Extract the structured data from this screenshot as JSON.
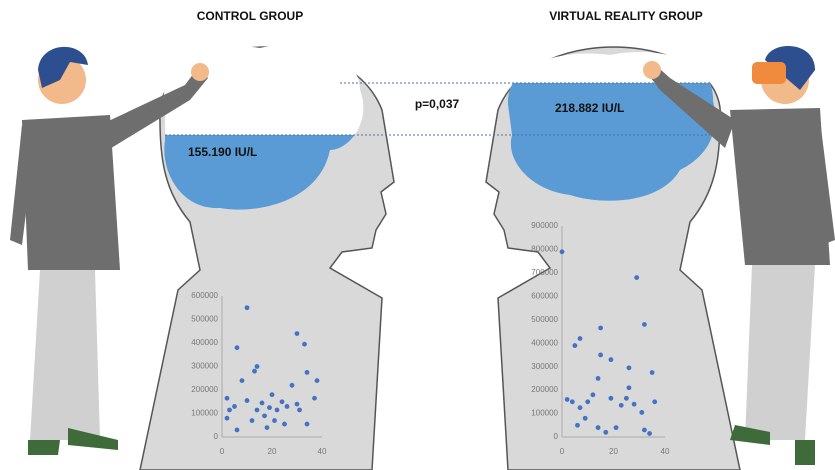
{
  "p_value": "p=0,037",
  "panels": [
    {
      "title": "CONTROL GROUP",
      "value_label": "155.190  IU/L",
      "scatter": {
        "type": "scatter",
        "color": "#4472c4",
        "x": [
          10,
          6,
          8,
          13,
          14,
          2,
          3,
          2,
          5,
          10,
          14,
          16,
          17,
          19,
          20,
          22,
          24,
          26,
          28,
          30,
          33,
          34,
          38,
          37,
          31,
          34,
          6,
          18,
          21,
          25,
          12,
          30
        ],
        "y": [
          550000,
          380000,
          240000,
          280000,
          300000,
          165000,
          115000,
          80000,
          130000,
          155000,
          115000,
          145000,
          90000,
          125000,
          180000,
          115000,
          150000,
          130000,
          220000,
          440000,
          395000,
          275000,
          240000,
          165000,
          115000,
          55000,
          30000,
          40000,
          70000,
          55000,
          70000,
          140000
        ],
        "xlim": [
          0,
          40
        ],
        "ylim": [
          0,
          600000
        ],
        "xticks": [
          0,
          20,
          40
        ],
        "yticks": [
          0,
          100000,
          200000,
          300000,
          400000,
          500000,
          600000
        ]
      }
    },
    {
      "title": "VIRTUAL REALITY GROUP",
      "value_label": "218.882 IU/L",
      "scatter": {
        "type": "scatter",
        "color": "#4472c4",
        "x": [
          0,
          29,
          5,
          7,
          15,
          32,
          15,
          19,
          14,
          26,
          35,
          2,
          4,
          7,
          10,
          12,
          19,
          23,
          25,
          28,
          31,
          36,
          6,
          14,
          17,
          21,
          32,
          34,
          9,
          26
        ],
        "y": [
          790000,
          680000,
          390000,
          420000,
          465000,
          480000,
          350000,
          330000,
          250000,
          295000,
          275000,
          160000,
          150000,
          125000,
          150000,
          180000,
          165000,
          135000,
          165000,
          140000,
          105000,
          150000,
          50000,
          40000,
          20000,
          40000,
          30000,
          15000,
          80000,
          210000
        ],
        "xlim": [
          0,
          40
        ],
        "ylim": [
          0,
          900000
        ],
        "xticks": [
          0,
          20,
          40
        ],
        "yticks": [
          0,
          100000,
          200000,
          300000,
          400000,
          500000,
          600000,
          700000,
          800000,
          900000
        ]
      }
    }
  ]
}
